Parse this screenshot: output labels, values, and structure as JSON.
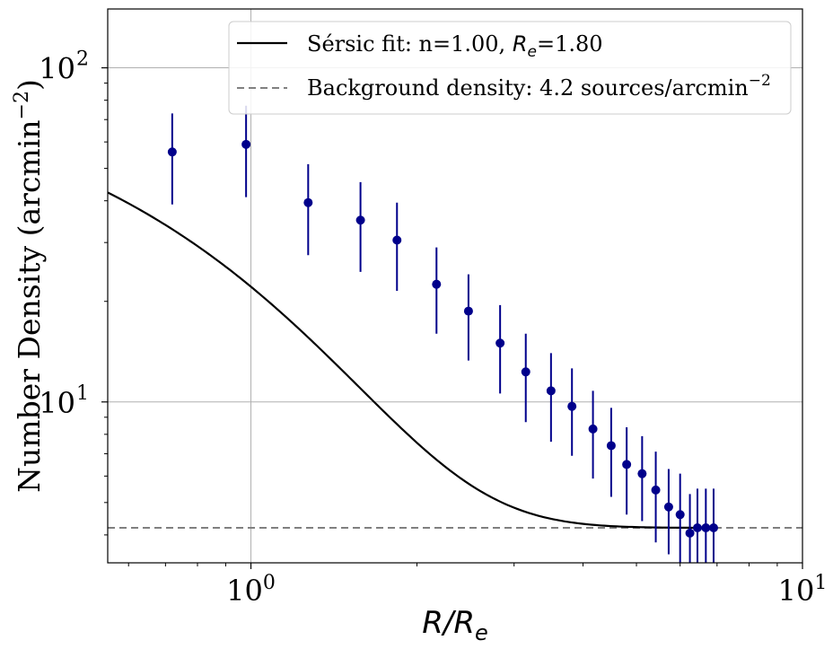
{
  "chart_data": {
    "type": "scatter",
    "title": "",
    "xlabel_base": "R/R",
    "xlabel_sub": "e",
    "ylabel_main": "Number Density (arcmin",
    "ylabel_exp": "−2",
    "ylabel_close": ")",
    "xscale": "log",
    "yscale": "log",
    "xlim": [
      0.55,
      10
    ],
    "ylim": [
      3.3,
      150
    ],
    "grid": true,
    "legend_position": "top-right",
    "x_ticks": [
      {
        "value": 1,
        "base": "10",
        "exp": "0"
      },
      {
        "value": 10,
        "base": "10",
        "exp": "1"
      }
    ],
    "y_ticks": [
      {
        "value": 10,
        "base": "10",
        "exp": "1"
      },
      {
        "value": 100,
        "base": "10",
        "exp": "2"
      }
    ],
    "fit": {
      "label_prefix": "Sérsic fit: n=1.00, ",
      "label_var": "R",
      "label_sub": "e",
      "label_suffix": "=1.80",
      "color": "#000000",
      "n": 1.0,
      "amplitude": 96.0,
      "b": 1.678,
      "x_start": 0.55,
      "x_end": 6.9
    },
    "background": {
      "label_main": "Background density: 4.2 sources/arcmin",
      "label_exp": "−2",
      "value": 4.2,
      "color": "#808080"
    },
    "series": [
      {
        "name": "data",
        "color": "#00008b",
        "points": [
          {
            "x": 0.72,
            "y": 56,
            "lo": 39,
            "hi": 73
          },
          {
            "x": 0.98,
            "y": 59,
            "lo": 41,
            "hi": 77
          },
          {
            "x": 1.27,
            "y": 39.5,
            "lo": 27.5,
            "hi": 51.5
          },
          {
            "x": 1.58,
            "y": 35,
            "lo": 24.5,
            "hi": 45.5
          },
          {
            "x": 1.84,
            "y": 30.5,
            "lo": 21.5,
            "hi": 39.5
          },
          {
            "x": 2.17,
            "y": 22.5,
            "lo": 16,
            "hi": 29
          },
          {
            "x": 2.48,
            "y": 18.7,
            "lo": 13.3,
            "hi": 24.1
          },
          {
            "x": 2.83,
            "y": 15,
            "lo": 10.6,
            "hi": 19.5
          },
          {
            "x": 3.15,
            "y": 12.3,
            "lo": 8.7,
            "hi": 16
          },
          {
            "x": 3.5,
            "y": 10.8,
            "lo": 7.6,
            "hi": 14
          },
          {
            "x": 3.82,
            "y": 9.7,
            "lo": 6.9,
            "hi": 12.6
          },
          {
            "x": 4.17,
            "y": 8.3,
            "lo": 5.9,
            "hi": 10.8
          },
          {
            "x": 4.5,
            "y": 7.4,
            "lo": 5.2,
            "hi": 9.6
          },
          {
            "x": 4.8,
            "y": 6.5,
            "lo": 4.6,
            "hi": 8.4
          },
          {
            "x": 5.12,
            "y": 6.1,
            "lo": 4.4,
            "hi": 7.9
          },
          {
            "x": 5.42,
            "y": 5.45,
            "lo": 3.8,
            "hi": 7.1
          },
          {
            "x": 5.72,
            "y": 4.85,
            "lo": 3.5,
            "hi": 6.3
          },
          {
            "x": 6.0,
            "y": 4.6,
            "lo": 3.3,
            "hi": 6.1
          },
          {
            "x": 6.25,
            "y": 4.05,
            "lo": 3.3,
            "hi": 5.3
          },
          {
            "x": 6.45,
            "y": 4.2,
            "lo": 3.3,
            "hi": 5.5
          },
          {
            "x": 6.68,
            "y": 4.2,
            "lo": 3.3,
            "hi": 5.5
          },
          {
            "x": 6.9,
            "y": 4.2,
            "lo": 3.3,
            "hi": 5.5
          }
        ]
      }
    ]
  }
}
